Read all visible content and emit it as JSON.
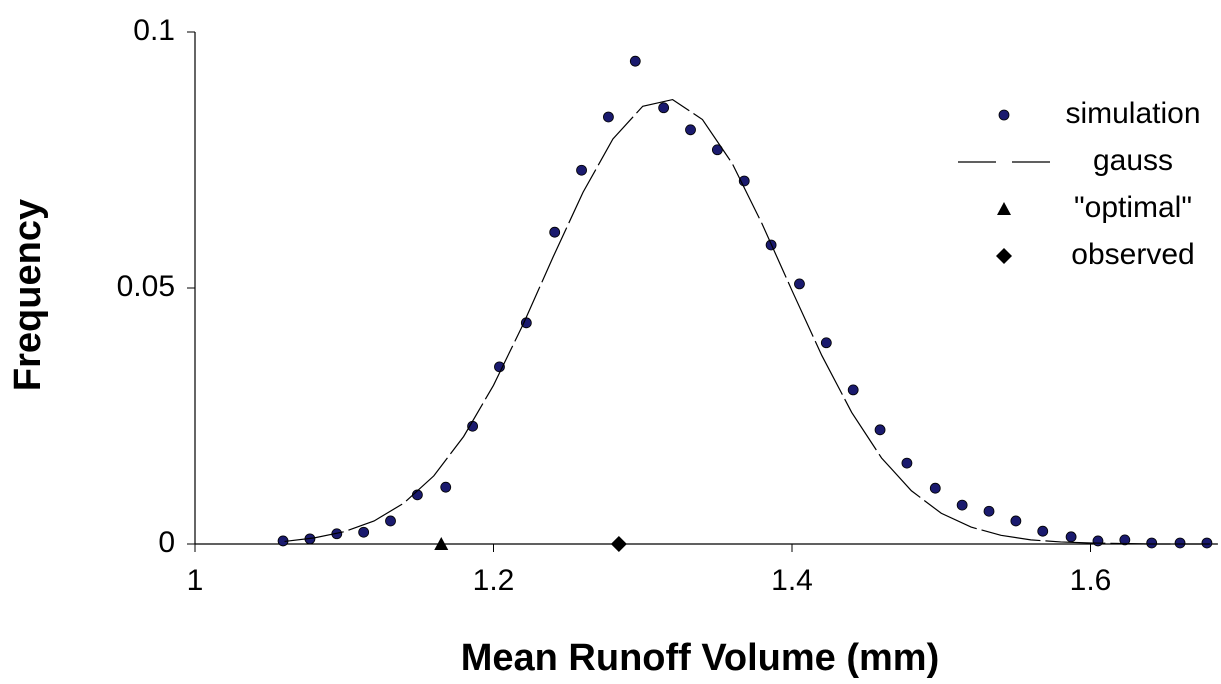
{
  "chart_data": {
    "type": "scatter",
    "x_label": "Mean Runoff Volume  (mm)",
    "y_label": "Frequency",
    "xlim": [
      1,
      1.68
    ],
    "ylim": [
      0,
      0.1
    ],
    "xticks": [
      1,
      1.2,
      1.4,
      1.6
    ],
    "yticks": [
      0,
      0.05,
      0.1
    ],
    "series": [
      {
        "name": "simulation",
        "marker": "circle",
        "color": "#1a1a6e",
        "x": [
          1.059,
          1.077,
          1.095,
          1.113,
          1.131,
          1.149,
          1.168,
          1.186,
          1.204,
          1.222,
          1.241,
          1.259,
          1.277,
          1.295,
          1.314,
          1.332,
          1.35,
          1.368,
          1.386,
          1.405,
          1.423,
          1.441,
          1.459,
          1.477,
          1.496,
          1.514,
          1.532,
          1.55,
          1.568,
          1.587,
          1.605,
          1.623,
          1.641,
          1.66,
          1.678
        ],
        "values": [
          0.0006,
          0.001,
          0.002,
          0.0023,
          0.0045,
          0.0096,
          0.0111,
          0.023,
          0.0346,
          0.0432,
          0.0609,
          0.073,
          0.0834,
          0.0943,
          0.0852,
          0.0809,
          0.077,
          0.0709,
          0.0584,
          0.0508,
          0.0393,
          0.0301,
          0.0223,
          0.0158,
          0.0109,
          0.0076,
          0.0064,
          0.0045,
          0.0025,
          0.0014,
          0.0006,
          0.0008,
          0.0002,
          0.0002,
          0.0002
        ]
      },
      {
        "name": "gauss",
        "marker": "line",
        "color": "#000000",
        "x": [
          1.06,
          1.08,
          1.1,
          1.12,
          1.14,
          1.16,
          1.18,
          1.2,
          1.22,
          1.24,
          1.26,
          1.28,
          1.3,
          1.32,
          1.34,
          1.36,
          1.38,
          1.4,
          1.42,
          1.44,
          1.46,
          1.48,
          1.5,
          1.52,
          1.54,
          1.56,
          1.58,
          1.6,
          1.62,
          1.64,
          1.66,
          1.68
        ],
        "values": [
          0.0005,
          0.0012,
          0.0024,
          0.0045,
          0.008,
          0.0133,
          0.021,
          0.031,
          0.043,
          0.0561,
          0.0687,
          0.0791,
          0.0855,
          0.0868,
          0.0829,
          0.0743,
          0.0625,
          0.0495,
          0.0368,
          0.0257,
          0.0168,
          0.0104,
          0.006,
          0.0033,
          0.0017,
          0.0008,
          0.0004,
          0.0002,
          0.0001,
          0,
          0,
          0
        ]
      },
      {
        "name": "\"optimal\"",
        "marker": "triangle",
        "color": "#000000",
        "x": [
          1.165
        ],
        "values": [
          0
        ]
      },
      {
        "name": "observed",
        "marker": "diamond",
        "color": "#000000",
        "x": [
          1.284
        ],
        "values": [
          0
        ]
      }
    ]
  }
}
